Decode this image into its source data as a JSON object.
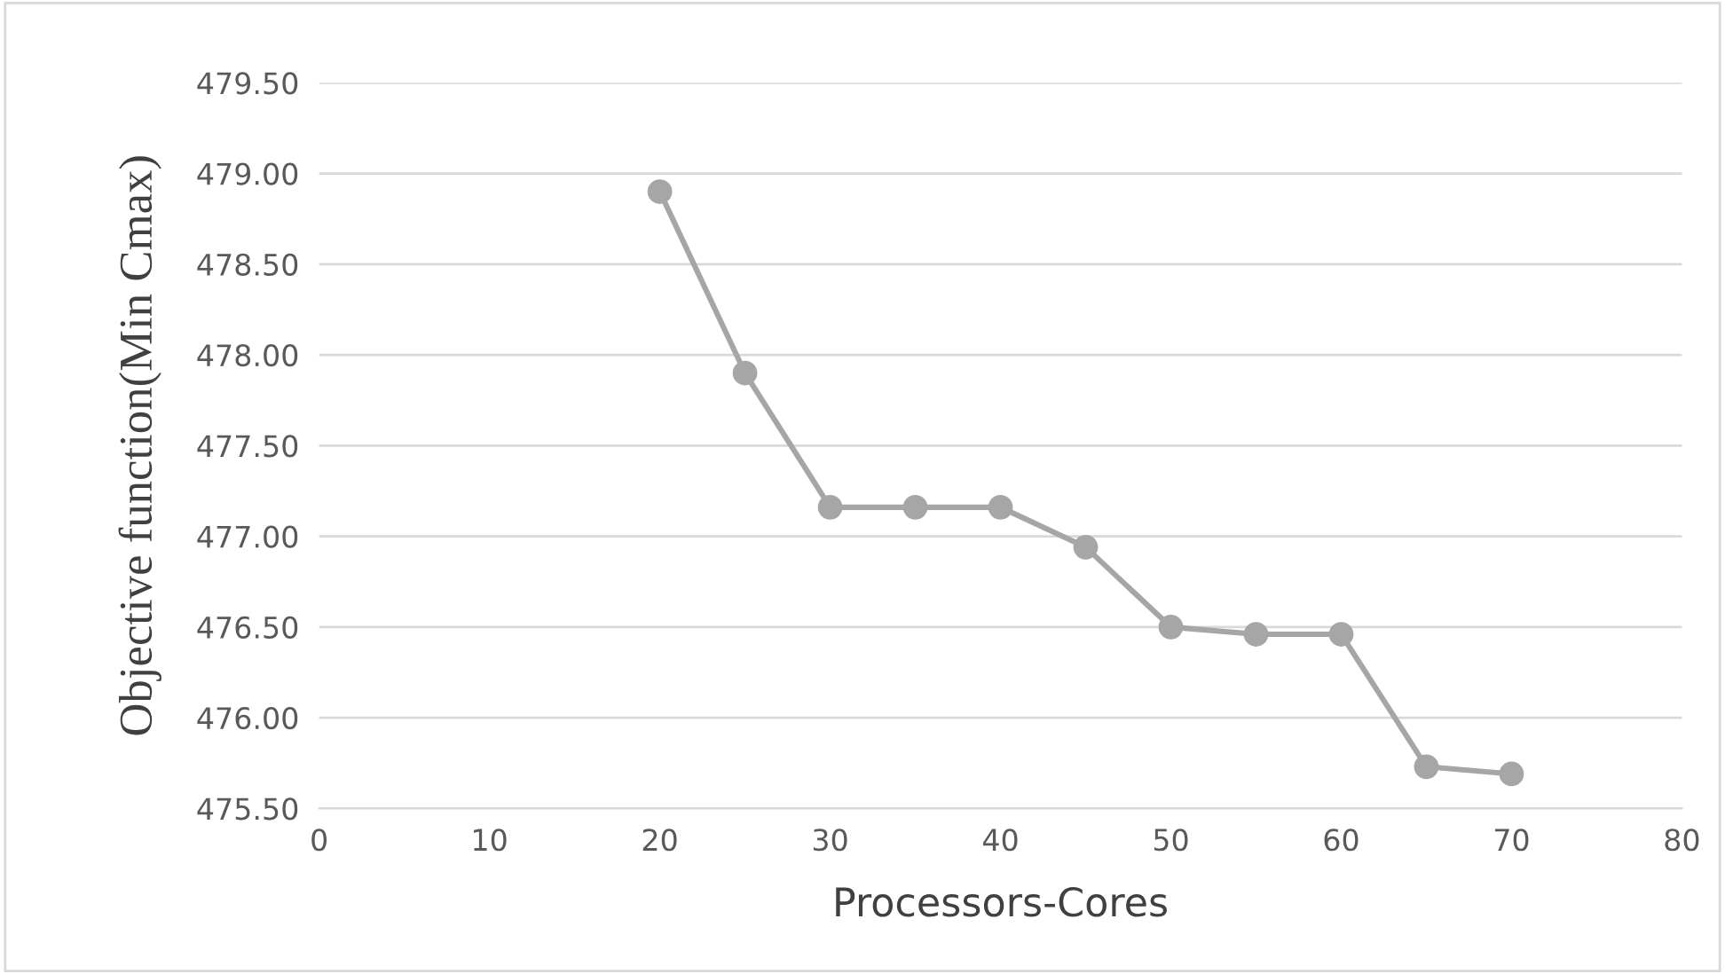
{
  "chart_data": {
    "type": "line",
    "xlabel": "Processors-Cores",
    "ylabel": "Objective function(Min Cmax)",
    "x": [
      20,
      25,
      30,
      35,
      40,
      45,
      50,
      55,
      60,
      65,
      70
    ],
    "series": [
      {
        "color": "#a6a6a6",
        "values": [
          478.9,
          477.9,
          477.16,
          477.16,
          477.16,
          476.94,
          476.5,
          476.46,
          476.46,
          475.73,
          475.69
        ]
      }
    ],
    "xlim": [
      0,
      80
    ],
    "xticks": [
      0,
      10,
      20,
      30,
      40,
      50,
      60,
      70,
      80
    ],
    "ylim": [
      475.5,
      479.5
    ],
    "yticks": [
      {
        "value": 475.5,
        "label": "475.50"
      },
      {
        "value": 476.0,
        "label": "476.00"
      },
      {
        "value": 476.5,
        "label": "476.50"
      },
      {
        "value": 477.0,
        "label": "477.00"
      },
      {
        "value": 477.5,
        "label": "477.50"
      },
      {
        "value": 478.0,
        "label": "478.00"
      },
      {
        "value": 478.5,
        "label": "478.50"
      },
      {
        "value": 479.0,
        "label": "479.00"
      },
      {
        "value": 479.5,
        "label": "479.50"
      }
    ],
    "grid": "y",
    "marker": "circle",
    "line_style": "solid",
    "legend": false
  }
}
